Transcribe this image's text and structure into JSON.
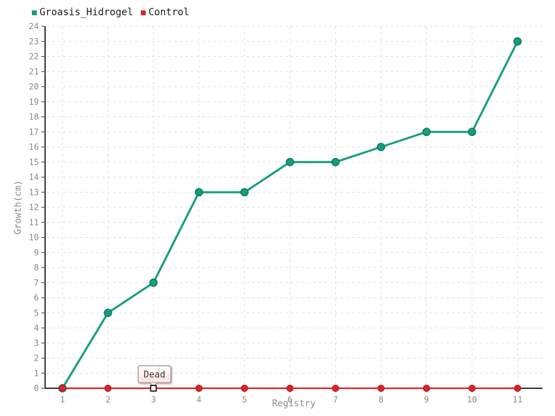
{
  "chart_data": {
    "type": "line",
    "title": "",
    "xlabel": "Registry",
    "ylabel": "Growth(cm)",
    "x": [
      1,
      2,
      3,
      4,
      5,
      6,
      7,
      8,
      9,
      10,
      11
    ],
    "xticks": [
      "1",
      "2",
      "3",
      "4",
      "5",
      "6",
      "7",
      "8",
      "9",
      "10",
      "11"
    ],
    "yticks": [
      0,
      1,
      2,
      3,
      4,
      5,
      6,
      7,
      8,
      9,
      10,
      11,
      12,
      13,
      14,
      15,
      16,
      17,
      18,
      19,
      20,
      21,
      22,
      23,
      24
    ],
    "ylim": [
      0,
      24
    ],
    "ytick_step": 1,
    "grid": "dashed",
    "legend_position": "top-left",
    "series": [
      {
        "name": "Groasis_Hidrogel",
        "color": "#179d7d",
        "point_stroke": "#0e7f63",
        "values": [
          0,
          5,
          7,
          13,
          13,
          15,
          15,
          16,
          17,
          17,
          23
        ]
      },
      {
        "name": "Control",
        "color": "#e02128",
        "point_stroke": "#b01a1f",
        "values": [
          0,
          0,
          0,
          0,
          0,
          0,
          0,
          0,
          0,
          0,
          0
        ]
      }
    ],
    "annotation": {
      "text": "Dead",
      "series": "Control",
      "x": 3,
      "y": 0
    }
  },
  "colors": {
    "background": "#ffffff",
    "axis": "#1a1a1a",
    "grid": "#e3e3e3",
    "y_tick_mark": "#555555",
    "x_tick_mark": "#b5b5b5",
    "tick_label": "#8a8a8a",
    "axis_title": "#8a8a8a",
    "legend_text": "#1a1a1a",
    "tooltip_bg_top": "#ffffff",
    "tooltip_bg_bottom": "#fbe2df",
    "tooltip_border": "#9a8c8c",
    "tooltip_text": "#3a3a3a",
    "marker_fill": "#ffffff",
    "marker_stroke": "#111111"
  }
}
